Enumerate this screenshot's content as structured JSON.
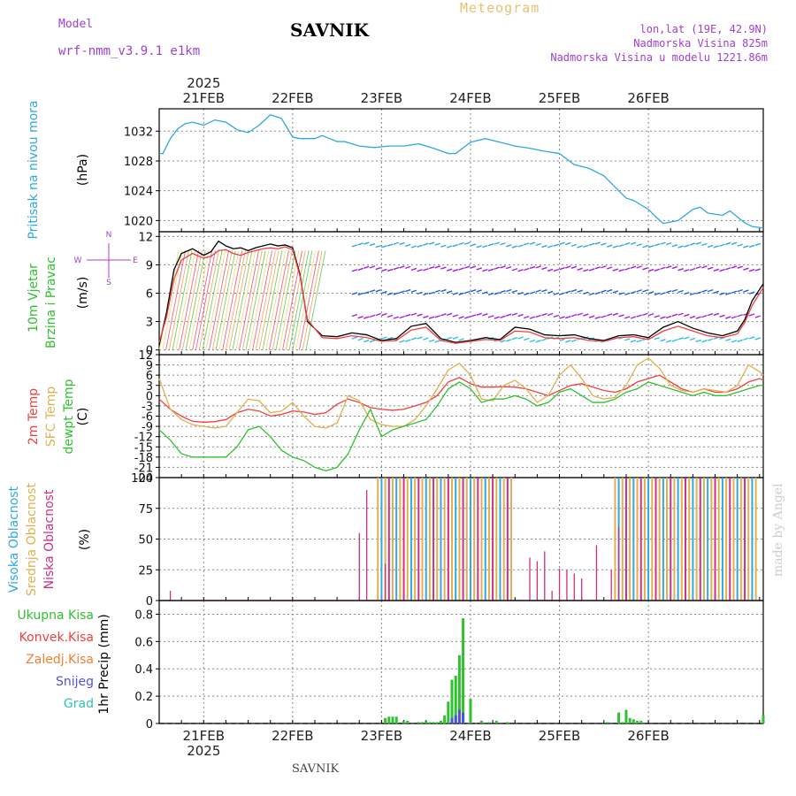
{
  "header": {
    "app_name": "Meteogram",
    "title": "SAVNIK",
    "model_label": "Model",
    "model_value": "wrf-nmm_v3.9.1  e1km",
    "info_line1": "lon,lat (19E, 42.9N)",
    "info_line2": "Nadmorska Visina 825m",
    "info_line3": "Nadmorska Visina u modelu 1221.86m",
    "credit": "made by Angel",
    "footer": "SAVNIK"
  },
  "time_axis": {
    "year": "2025",
    "day_labels": [
      "21FEB",
      "22FEB",
      "23FEB",
      "24FEB",
      "25FEB",
      "26FEB"
    ]
  },
  "panel_labels": {
    "pressure": {
      "lines": [
        {
          "text": "Pritisak na nivou mora",
          "color": "#30a8e0"
        }
      ],
      "unit": "(hPa)"
    },
    "wind": {
      "lines": [
        {
          "text": "10m Vjetar",
          "color": "#30c030"
        },
        {
          "text": "Brzina i Pravac",
          "color": "#30c030"
        }
      ],
      "unit": "(m/s)",
      "compass": [
        "N",
        "W",
        "E",
        "S"
      ]
    },
    "temp": {
      "lines": [
        {
          "text": "2m Temp",
          "color": "#f04040"
        },
        {
          "text": "SFC Temp",
          "color": "#e0b050"
        },
        {
          "text": "dewpt Temp",
          "color": "#30c030"
        }
      ],
      "unit": "(C)"
    },
    "cloud": {
      "lines": [
        {
          "text": "Visoka Oblacnost",
          "color": "#30a8e0"
        },
        {
          "text": "Srednja Oblacnost",
          "color": "#e0b050"
        },
        {
          "text": "Niska Oblacnost",
          "color": "#d03080"
        }
      ],
      "unit": "(%)"
    },
    "precip": {
      "legend": [
        {
          "text": "Ukupna Kisa",
          "color": "#30c030"
        },
        {
          "text": "Konvek.Kisa",
          "color": "#f04040"
        },
        {
          "text": "Zaledj.Kisa",
          "color": "#f08030"
        },
        {
          "text": "Snijeg",
          "color": "#5050e0"
        },
        {
          "text": "Grad",
          "color": "#30c0b0"
        }
      ],
      "unit": "1hr Precip (mm)"
    }
  },
  "chart_data": [
    {
      "type": "line",
      "panel": "pressure",
      "ylim": [
        1018.5,
        1035
      ],
      "yticks": [
        1020,
        1024,
        1028,
        1032
      ],
      "color": "#30a8e0",
      "x_hours": [
        0,
        1,
        3,
        5,
        7,
        9,
        12,
        15,
        18,
        21,
        24,
        27,
        30,
        33,
        36,
        38,
        40,
        42,
        44,
        46,
        48,
        50,
        54,
        58,
        62,
        66,
        70,
        74,
        78,
        80,
        84,
        88,
        92,
        96,
        100,
        104,
        108,
        112,
        116,
        120,
        124,
        126,
        128,
        132,
        134,
        136,
        140,
        144,
        146,
        148,
        152,
        154,
        156,
        158,
        160,
        163
      ],
      "values": [
        1029,
        1029,
        1031,
        1032.3,
        1033,
        1033.2,
        1032.8,
        1033.5,
        1033.2,
        1032.2,
        1031.8,
        1032.8,
        1034.2,
        1033.7,
        1031.2,
        1031,
        1031,
        1031,
        1031.4,
        1031,
        1030.6,
        1030.6,
        1030,
        1029.8,
        1030,
        1030,
        1030.3,
        1029.7,
        1029,
        1029,
        1030.5,
        1031,
        1030.5,
        1030,
        1029.7,
        1029.3,
        1029,
        1027.5,
        1027,
        1026,
        1024,
        1023,
        1022.7,
        1021.5,
        1020.5,
        1019.6,
        1020,
        1021.5,
        1021.8,
        1021,
        1020.7,
        1021.3,
        1020.5,
        1019.7,
        1019.2,
        1019
      ]
    },
    {
      "type": "line",
      "panel": "wind",
      "ylim": [
        -0.5,
        12.5
      ],
      "yticks": [
        0,
        3,
        6,
        9,
        12
      ],
      "series": [
        {
          "color": "#000000",
          "x_hours": [
            0,
            2,
            4,
            6,
            9,
            12,
            14,
            16,
            18,
            20,
            22,
            24,
            26,
            28,
            30,
            32,
            34,
            36,
            38,
            40,
            44,
            48,
            52,
            56,
            60,
            64,
            68,
            72,
            76,
            80,
            84,
            88,
            92,
            96,
            100,
            104,
            108,
            112,
            116,
            120,
            124,
            128,
            132,
            136,
            140,
            144,
            148,
            152,
            156,
            158,
            160,
            163
          ],
          "values": [
            0.5,
            4,
            8.5,
            10.2,
            10.7,
            10,
            10.4,
            11.5,
            11,
            10.7,
            10.8,
            10.5,
            10.8,
            11,
            11.2,
            11,
            11.1,
            10.8,
            8,
            3,
            1.5,
            1.4,
            1.8,
            1.6,
            1,
            1.2,
            2.5,
            2.8,
            1.2,
            0.8,
            1,
            1.3,
            1.1,
            2.4,
            2.2,
            1.6,
            1.5,
            1.6,
            1.2,
            1,
            1.5,
            1.6,
            1.3,
            2.4,
            3,
            2.3,
            1.8,
            1.5,
            2,
            3.2,
            5.2,
            7
          ]
        },
        {
          "color": "#f04040",
          "x_hours": [
            0,
            2,
            4,
            6,
            9,
            12,
            14,
            16,
            18,
            20,
            22,
            24,
            26,
            28,
            30,
            32,
            34,
            36,
            38,
            40,
            44,
            48,
            52,
            56,
            60,
            64,
            68,
            72,
            76,
            80,
            84,
            88,
            92,
            96,
            100,
            104,
            108,
            112,
            116,
            120,
            124,
            128,
            132,
            136,
            140,
            144,
            148,
            152,
            156,
            158,
            160,
            163
          ],
          "values": [
            0.8,
            3.5,
            7.5,
            9.5,
            10.2,
            9.7,
            9.9,
            10.5,
            10.6,
            10.2,
            10,
            10.3,
            10.5,
            10.7,
            10.8,
            10.7,
            10.9,
            10.6,
            7.8,
            3.2,
            1.3,
            1.2,
            1.5,
            1.3,
            0.9,
            1,
            2.1,
            2.4,
            1,
            0.7,
            0.9,
            1.1,
            1,
            2,
            1.9,
            1.3,
            1.2,
            1.3,
            1,
            0.9,
            1.3,
            1.4,
            1.1,
            2,
            2.5,
            2,
            1.5,
            1.3,
            1.7,
            2.9,
            4.7,
            6.6
          ]
        }
      ]
    },
    {
      "type": "line",
      "panel": "temp",
      "ylim": [
        -24,
        12
      ],
      "yticks": [
        12,
        9,
        6,
        3,
        0,
        -3,
        -6,
        -9,
        -12,
        -15,
        -18,
        -21,
        -24
      ],
      "series": [
        {
          "name": "2m Temp",
          "color": "#f04040",
          "x_hours": [
            0,
            3,
            6,
            9,
            12,
            15,
            18,
            21,
            24,
            27,
            30,
            33,
            36,
            39,
            42,
            45,
            48,
            51,
            54,
            57,
            60,
            63,
            66,
            69,
            72,
            75,
            78,
            81,
            84,
            87,
            90,
            93,
            96,
            99,
            102,
            105,
            108,
            111,
            114,
            117,
            120,
            123,
            126,
            129,
            132,
            135,
            138,
            141,
            144,
            147,
            150,
            153,
            156,
            159,
            162,
            163
          ],
          "values": [
            -1,
            -4,
            -6,
            -7.5,
            -7.8,
            -7.6,
            -7,
            -5,
            -4,
            -4.5,
            -6,
            -5.5,
            -4.5,
            -4.8,
            -5.5,
            -5,
            -2.5,
            -1,
            -2,
            -3.5,
            -4,
            -4.3,
            -4,
            -3,
            -2,
            0,
            4,
            5.3,
            3.5,
            2.5,
            2.5,
            2.6,
            2.5,
            2,
            1,
            0,
            1.5,
            3,
            3.5,
            2.5,
            1.5,
            1,
            2,
            4,
            5,
            6,
            4,
            2,
            1,
            2,
            1,
            1,
            2,
            4,
            5,
            4.5
          ]
        },
        {
          "name": "SFC Temp",
          "color": "#e0b050",
          "x_hours": [
            0,
            3,
            6,
            9,
            12,
            15,
            18,
            21,
            24,
            27,
            30,
            33,
            36,
            39,
            42,
            45,
            48,
            51,
            54,
            57,
            60,
            63,
            66,
            69,
            72,
            75,
            78,
            81,
            84,
            87,
            90,
            93,
            96,
            99,
            102,
            105,
            108,
            111,
            114,
            117,
            120,
            123,
            126,
            129,
            132,
            135,
            138,
            141,
            144,
            147,
            150,
            153,
            156,
            159,
            162,
            163
          ],
          "values": [
            5,
            -4,
            -7,
            -8.5,
            -9,
            -9.5,
            -9,
            -5,
            -1,
            -1.5,
            -5,
            -4.5,
            -2,
            -6,
            -9,
            -9.5,
            -8,
            0,
            -1.5,
            -7,
            -8.5,
            -9,
            -9,
            -7,
            -3,
            2,
            7.5,
            9.5,
            6,
            -1,
            -1.5,
            3,
            4.5,
            2,
            -2,
            0,
            6,
            9,
            5,
            0,
            -1,
            -0.5,
            3,
            9,
            11,
            8,
            3,
            1.5,
            1,
            2,
            1.5,
            1,
            3,
            9,
            7,
            6
          ]
        },
        {
          "name": "dewpt Temp",
          "color": "#30c030",
          "x_hours": [
            0,
            3,
            6,
            9,
            12,
            15,
            18,
            21,
            24,
            27,
            30,
            33,
            36,
            39,
            42,
            45,
            48,
            51,
            54,
            57,
            60,
            63,
            66,
            69,
            72,
            75,
            78,
            81,
            84,
            87,
            90,
            93,
            96,
            99,
            102,
            105,
            108,
            111,
            114,
            117,
            120,
            123,
            126,
            129,
            132,
            135,
            138,
            141,
            144,
            147,
            150,
            153,
            156,
            159,
            162,
            163
          ],
          "values": [
            -10,
            -13,
            -17,
            -18,
            -18,
            -18,
            -18,
            -15,
            -10,
            -9,
            -12,
            -16,
            -18,
            -19,
            -21,
            -22,
            -21,
            -17,
            -10,
            -4,
            -12,
            -10,
            -9,
            -8,
            -7,
            -3,
            2,
            4,
            2,
            -2,
            -1,
            -1,
            0,
            -1,
            -3,
            -2,
            1,
            2,
            0,
            -2,
            -2,
            -1,
            1,
            2,
            4,
            3,
            2,
            1,
            0,
            1,
            0,
            0,
            1,
            2,
            3,
            3
          ]
        }
      ]
    },
    {
      "type": "bar",
      "panel": "cloud",
      "ylim": [
        0,
        100
      ],
      "yticks": [
        0,
        25,
        50,
        75,
        100
      ],
      "colors": {
        "high": "#30a8e0",
        "mid": "#e0b050",
        "low": "#d03080"
      },
      "low_bars": {
        "x_hours": [
          3,
          54,
          56,
          61,
          100,
          102,
          104,
          106,
          108,
          110,
          112,
          114,
          118,
          122,
          124,
          126
        ],
        "values": [
          8,
          55,
          90,
          30,
          35,
          32,
          40,
          8,
          26,
          25,
          22,
          18,
          45,
          25,
          60,
          30
        ]
      },
      "overcast_periods": [
        [
          59,
          95
        ],
        [
          123,
          161
        ]
      ]
    },
    {
      "type": "bar",
      "panel": "precip",
      "ylim": [
        0,
        0.9
      ],
      "yticks": [
        0,
        0.2,
        0.4,
        0.6,
        0.8
      ],
      "colors": {
        "total": "#30c030",
        "snow": "#5050e0"
      },
      "x_hours": [
        61,
        62,
        63,
        64,
        66,
        67,
        70,
        71,
        72,
        73,
        74,
        75,
        76,
        77,
        78,
        79,
        80,
        81,
        82,
        84,
        87,
        89,
        91,
        94,
        121,
        124,
        125,
        126,
        127,
        128,
        129,
        130,
        163
      ],
      "values": [
        0.04,
        0.05,
        0.05,
        0.05,
        0.02,
        0.02,
        0.01,
        0.01,
        0.02,
        0.01,
        0.01,
        0.01,
        0.02,
        0.06,
        0.16,
        0.32,
        0.35,
        0.5,
        0.77,
        0.18,
        0.02,
        0.01,
        0.02,
        0.01,
        0.01,
        0.08,
        0.01,
        0.1,
        0.04,
        0.03,
        0.02,
        0.02,
        0.06
      ],
      "snow_x_hours": [
        79,
        80,
        81,
        82
      ],
      "snow_values": [
        0.04,
        0.06,
        0.1,
        0.08
      ]
    }
  ]
}
